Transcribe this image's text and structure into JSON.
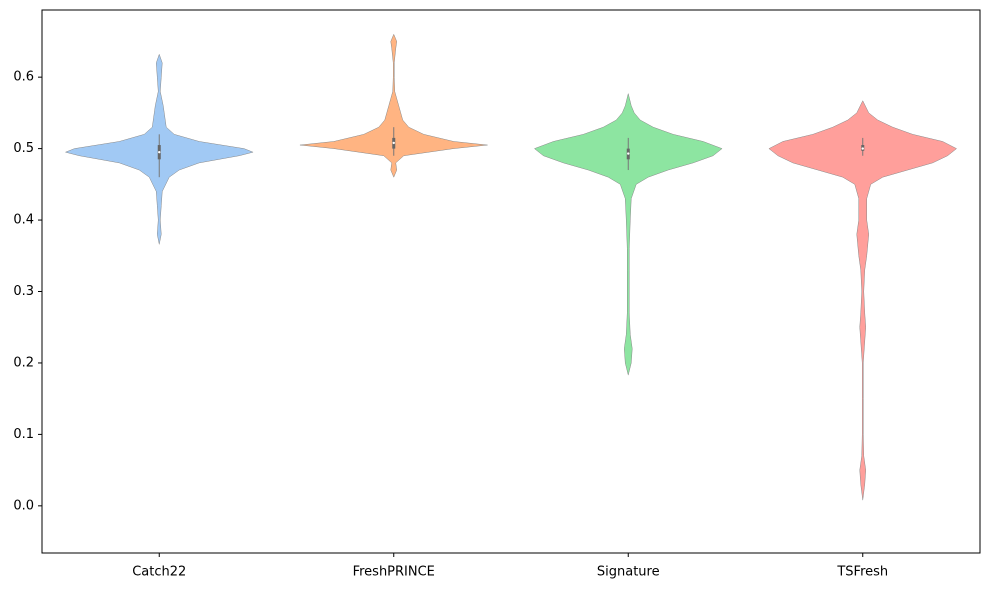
{
  "chart_data": {
    "type": "violin",
    "categories": [
      "Catch22",
      "FreshPRINCE",
      "Signature",
      "TSFresh"
    ],
    "ylim": [
      -0.066,
      0.694
    ],
    "yticks": [
      {
        "value": 0,
        "label": "0.0"
      },
      0.1,
      0.2,
      0.3,
      0.4,
      0.5,
      0.6
    ],
    "series": [
      {
        "name": "Catch22",
        "color": "#a1c9f4",
        "y": [
          0.366,
          0.38,
          0.4,
          0.42,
          0.44,
          0.46,
          0.47,
          0.48,
          0.49,
          0.495,
          0.5,
          0.51,
          0.52,
          0.53,
          0.54,
          0.55,
          0.56,
          0.58,
          0.6,
          0.62,
          0.632
        ],
        "density": [
          0,
          0.02,
          0.01,
          0.02,
          0.03,
          0.1,
          0.2,
          0.4,
          0.8,
          0.94,
          0.85,
          0.4,
          0.15,
          0.07,
          0.06,
          0.05,
          0.04,
          0.01,
          0.02,
          0.03,
          0
        ],
        "whisker_low": 0.46,
        "q1": 0.485,
        "median": 0.495,
        "q3": 0.505,
        "whisker_high": 0.52
      },
      {
        "name": "FreshPRINCE",
        "color": "#ffb482",
        "y": [
          0.46,
          0.47,
          0.48,
          0.49,
          0.5,
          0.505,
          0.51,
          0.52,
          0.53,
          0.54,
          0.55,
          0.56,
          0.57,
          0.58,
          0.6,
          0.62,
          0.64,
          0.65,
          0.66
        ],
        "density": [
          0,
          0.03,
          0.02,
          0.1,
          0.6,
          0.94,
          0.6,
          0.3,
          0.15,
          0.09,
          0.07,
          0.05,
          0.03,
          0.01,
          0.005,
          0.005,
          0.02,
          0.03,
          0
        ],
        "whisker_low": 0.49,
        "q1": 0.5,
        "median": 0.508,
        "q3": 0.515,
        "whisker_high": 0.53
      },
      {
        "name": "Signature",
        "color": "#8de5a1",
        "y": [
          0.183,
          0.2,
          0.22,
          0.24,
          0.27,
          0.3,
          0.33,
          0.36,
          0.4,
          0.43,
          0.45,
          0.46,
          0.47,
          0.48,
          0.49,
          0.5,
          0.51,
          0.52,
          0.53,
          0.54,
          0.55,
          0.56,
          0.577
        ],
        "density": [
          0,
          0.03,
          0.04,
          0.02,
          0.01,
          0.01,
          0.01,
          0.01,
          0.02,
          0.03,
          0.08,
          0.2,
          0.4,
          0.65,
          0.85,
          0.94,
          0.75,
          0.45,
          0.25,
          0.12,
          0.06,
          0.03,
          0
        ],
        "whisker_low": 0.47,
        "q1": 0.485,
        "median": 0.493,
        "q3": 0.5,
        "whisker_high": 0.515
      },
      {
        "name": "TSFresh",
        "color": "#ff9f9b",
        "y": [
          0.008,
          0.03,
          0.05,
          0.07,
          0.1,
          0.15,
          0.2,
          0.25,
          0.27,
          0.3,
          0.33,
          0.35,
          0.38,
          0.4,
          0.43,
          0.45,
          0.46,
          0.47,
          0.48,
          0.49,
          0.5,
          0.51,
          0.52,
          0.53,
          0.54,
          0.55,
          0.567
        ],
        "density": [
          0,
          0.02,
          0.03,
          0.01,
          0.005,
          0.005,
          0.005,
          0.03,
          0.02,
          0.01,
          0.02,
          0.04,
          0.06,
          0.04,
          0.04,
          0.08,
          0.2,
          0.45,
          0.7,
          0.85,
          0.94,
          0.8,
          0.5,
          0.3,
          0.15,
          0.06,
          0
        ],
        "whisker_low": 0.49,
        "q1": 0.497,
        "median": 0.5,
        "q3": 0.505,
        "whisker_high": 0.515
      }
    ]
  }
}
